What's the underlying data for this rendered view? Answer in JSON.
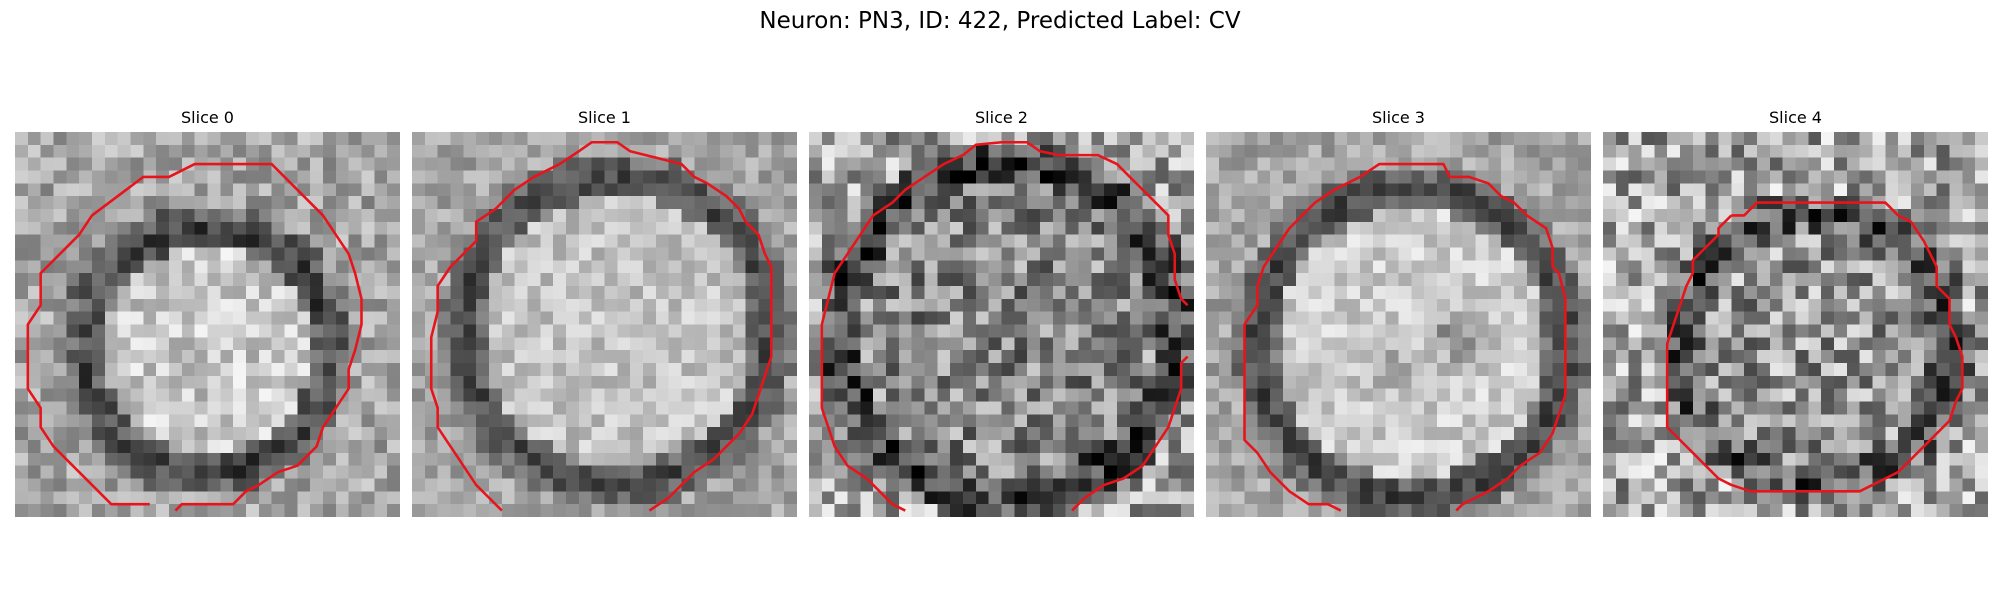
{
  "figure": {
    "title": "Neuron: PN3, ID: 422, Predicted Label: CV"
  },
  "panels": [
    {
      "title": "Slice 0"
    },
    {
      "title": "Slice 1"
    },
    {
      "title": "Slice 2"
    },
    {
      "title": "Slice 3"
    },
    {
      "title": "Slice 4"
    }
  ],
  "colors": {
    "contour": "#e8141b",
    "colormap": "grayscale"
  }
}
